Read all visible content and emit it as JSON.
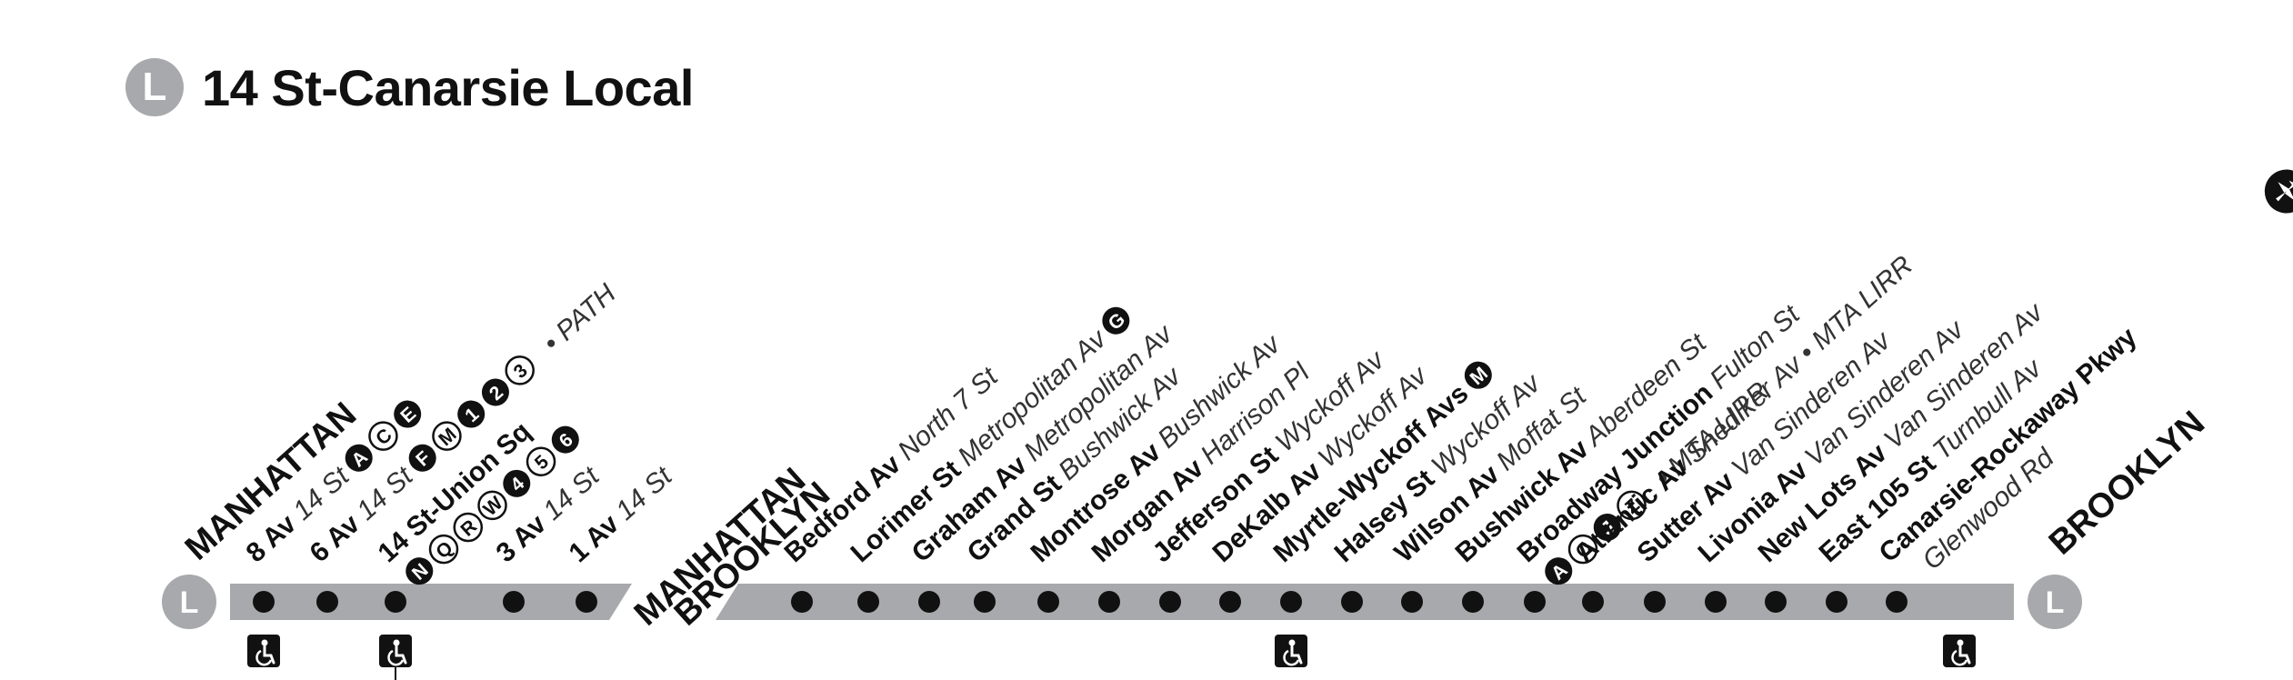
{
  "line": {
    "letter": "L",
    "title": "14 St-Canarsie Local",
    "color": "#a7a9ac"
  },
  "boroughs": {
    "manhattan": "MANHATTAN",
    "brooklyn": "BROOKLYN"
  },
  "river_label": {
    "top": "MANHATTAN",
    "bottom": "BROOKLYN"
  },
  "stations": [
    {
      "name": "8 Av",
      "cross": "14 St",
      "transfers": [
        {
          "route": "A",
          "style": "filled"
        },
        {
          "route": "C",
          "style": "outline"
        },
        {
          "route": "E",
          "style": "filled"
        }
      ],
      "note": "",
      "accessible": true
    },
    {
      "name": "6 Av",
      "cross": "14 St",
      "transfers": [
        {
          "route": "F",
          "style": "filled"
        },
        {
          "route": "M",
          "style": "outline"
        },
        {
          "route": "1",
          "style": "filled"
        },
        {
          "route": "2",
          "style": "filled"
        },
        {
          "route": "3",
          "style": "outline"
        }
      ],
      "note": "• PATH",
      "accessible": true
    },
    {
      "name": "14 St-Union Sq",
      "cross": "",
      "transfers": [
        {
          "route": "N",
          "style": "filled"
        },
        {
          "route": "Q",
          "style": "outline"
        },
        {
          "route": "R",
          "style": "outline"
        },
        {
          "route": "W",
          "style": "outline"
        },
        {
          "route": "4",
          "style": "filled"
        },
        {
          "route": "5",
          "style": "outline"
        },
        {
          "route": "6",
          "style": "filled"
        }
      ],
      "note": "",
      "accessible": false
    },
    {
      "name": "3 Av",
      "cross": "14 St",
      "transfers": [],
      "note": "",
      "accessible": false
    },
    {
      "name": "1 Av",
      "cross": "14 St",
      "transfers": [],
      "note": "",
      "accessible": false
    },
    {
      "name": "Bedford Av",
      "cross": "North 7 St",
      "transfers": [],
      "note": "",
      "accessible": false
    },
    {
      "name": "Lorimer St",
      "cross": "Metropolitan Av",
      "transfers": [
        {
          "route": "G",
          "style": "filled"
        }
      ],
      "note": "",
      "accessible": false
    },
    {
      "name": "Graham Av",
      "cross": "Metropolitan Av",
      "transfers": [],
      "note": "",
      "accessible": false
    },
    {
      "name": "Grand St",
      "cross": "Bushwick Av",
      "transfers": [],
      "note": "",
      "accessible": false
    },
    {
      "name": "Montrose Av",
      "cross": "Bushwick Av",
      "transfers": [],
      "note": "",
      "accessible": false
    },
    {
      "name": "Morgan Av",
      "cross": "Harrison Pl",
      "transfers": [],
      "note": "",
      "accessible": false
    },
    {
      "name": "Jefferson St",
      "cross": "Wyckoff Av",
      "transfers": [],
      "note": "",
      "accessible": false
    },
    {
      "name": "DeKalb Av",
      "cross": "Wyckoff Av",
      "transfers": [],
      "note": "",
      "accessible": false
    },
    {
      "name": "Myrtle-Wyckoff Avs",
      "cross": "",
      "transfers": [
        {
          "route": "M",
          "style": "filled"
        }
      ],
      "note": "",
      "accessible": true
    },
    {
      "name": "Halsey St",
      "cross": "Wyckoff Av",
      "transfers": [],
      "note": "",
      "accessible": false
    },
    {
      "name": "Wilson Av",
      "cross": "Moffat St",
      "transfers": [],
      "note": "",
      "accessible": false
    },
    {
      "name": "Bushwick Av",
      "cross": "Aberdeen St",
      "transfers": [],
      "note": "",
      "accessible": false
    },
    {
      "name": "Broadway Junction",
      "cross": "Fulton St",
      "transfers": [
        {
          "route": "A",
          "style": "filled"
        },
        {
          "route": "C",
          "style": "outline"
        },
        {
          "route": "J",
          "style": "filled"
        },
        {
          "route": "Z",
          "style": "outline"
        }
      ],
      "note": "• MTA LIRR",
      "accessible": false
    },
    {
      "name": "Atlantic Av",
      "cross": "Snediker Av",
      "transfers": [],
      "note": "• MTA LIRR",
      "accessible": false
    },
    {
      "name": "Sutter Av",
      "cross": "Van Sinderen Av",
      "transfers": [],
      "note": "",
      "accessible": false
    },
    {
      "name": "Livonia Av",
      "cross": "Van Sinderen Av",
      "transfers": [],
      "note": "",
      "accessible": false
    },
    {
      "name": "New Lots Av",
      "cross": "Van Sinderen Av",
      "transfers": [],
      "note": "",
      "accessible": false
    },
    {
      "name": "East 105 St",
      "cross": "Turnbull Av",
      "transfers": [],
      "note": "",
      "accessible": false
    },
    {
      "name": "Canarsie-Rockaway Pkwy",
      "cross": "Glenwood Rd",
      "transfers": [],
      "note": "",
      "accessible": true,
      "airport": true
    }
  ],
  "icons": {
    "accessible": "wheelchair-icon",
    "airport": "airplane-icon",
    "terminal": "route-bullet-icon"
  }
}
